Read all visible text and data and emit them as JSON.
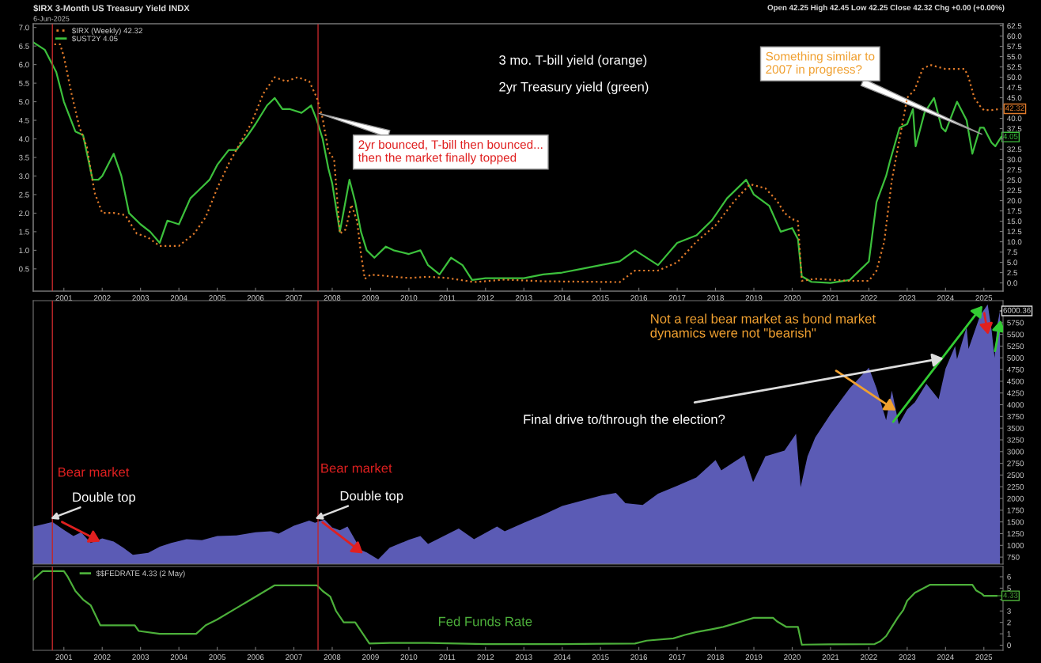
{
  "chart_data": [
    {
      "type": "line",
      "title": "$IRX 3-Month US Treasury Yield INDX",
      "subtitle": "6-Jun-2025",
      "legend": "top left",
      "xlim": [
        2000.2,
        2025.5
      ],
      "xticks": [
        2001,
        2002,
        2003,
        2004,
        2005,
        2006,
        2007,
        2008,
        2009,
        2010,
        2011,
        2012,
        2013,
        2014,
        2015,
        2016,
        2017,
        2018,
        2019,
        2020,
        2021,
        2022,
        2023,
        2024,
        2025
      ],
      "ylim": [
        -0.1,
        7.1
      ],
      "yticks": [
        0.5,
        {
          "value": 1,
          "label": "1.0"
        },
        1.5,
        {
          "value": 2,
          "label": "2.0"
        },
        2.5,
        {
          "value": 3,
          "label": "3.0"
        },
        3.5,
        {
          "value": 4,
          "label": "4.0"
        },
        4.5,
        {
          "value": 5,
          "label": "5.0"
        },
        5.5,
        {
          "value": 6,
          "label": "6.0"
        },
        6.5,
        {
          "value": 7,
          "label": "7.0"
        }
      ],
      "y2lim": [
        -2,
        63
      ],
      "y2ticks": [
        {
          "value": 0,
          "label": "0.0"
        },
        2.5,
        {
          "value": 5,
          "label": "5.0"
        },
        7.5,
        {
          "value": 10,
          "label": "10.0"
        },
        12.5,
        {
          "value": 15,
          "label": "15.0"
        },
        17.5,
        {
          "value": 20,
          "label": "20.0"
        },
        22.5,
        {
          "value": 25,
          "label": "25.0"
        },
        27.5,
        {
          "value": 30,
          "label": "30.0"
        },
        32.5,
        {
          "value": 35,
          "label": null
        },
        37.5,
        {
          "value": 40,
          "label": "40.0"
        },
        {
          "value": 45,
          "label": "45.0"
        },
        47.5,
        {
          "value": 50,
          "label": "50.0"
        },
        52.5,
        {
          "value": 55,
          "label": "55.0"
        },
        57.5,
        {
          "value": 60,
          "label": "60.0"
        },
        62.5
      ],
      "series": [
        {
          "name": "$IRX (Weekly) 42.32",
          "color": "#e07a2a",
          "axis": "y2",
          "line_style": "dotted",
          "x": [
            2000.75,
            2000.9,
            2001.0,
            2001.2,
            2001.4,
            2001.6,
            2001.8,
            2002.0,
            2002.3,
            2002.6,
            2002.9,
            2003.2,
            2003.5,
            2003.8,
            2004.0,
            2004.4,
            2004.7,
            2005.0,
            2005.3,
            2005.6,
            2005.9,
            2006.2,
            2006.5,
            2006.8,
            2007.1,
            2007.4,
            2007.6,
            2007.75,
            2007.9,
            2008.05,
            2008.2,
            2008.35,
            2008.5,
            2008.65,
            2008.75,
            2008.85,
            2009.0,
            2009.3,
            2009.6,
            2010.0,
            2010.5,
            2011.0,
            2011.5,
            2011.7,
            2012.5,
            2013.5,
            2014.5,
            2015.5,
            2015.9,
            2016.5,
            2017.0,
            2017.5,
            2018.0,
            2018.5,
            2018.9,
            2019.3,
            2019.6,
            2019.8,
            2020.0,
            2020.15,
            2020.25,
            2020.6,
            2021.5,
            2022.0,
            2022.2,
            2022.4,
            2022.6,
            2022.8,
            2023.0,
            2023.2,
            2023.4,
            2023.6,
            2024.0,
            2024.5,
            2024.6,
            2024.75,
            2024.9,
            2025.0,
            2025.2,
            2025.45
          ],
          "values": [
            58,
            58,
            55,
            46,
            38,
            33,
            22,
            17,
            17,
            16.5,
            12,
            11,
            9,
            9,
            9,
            12,
            16,
            23,
            29,
            34,
            39,
            46,
            50,
            49,
            50,
            49,
            45,
            40,
            32,
            30,
            12,
            13,
            19,
            15,
            7,
            1,
            2,
            1.8,
            1.5,
            1.2,
            1.5,
            1.2,
            0.5,
            0.2,
            0.8,
            0.4,
            0.3,
            0.2,
            3,
            3,
            5,
            10,
            14,
            20,
            24,
            23,
            20,
            17,
            15.5,
            15,
            0.5,
            1,
            0.5,
            0.5,
            3,
            10,
            25,
            35,
            45,
            47,
            52,
            53,
            52,
            52,
            50,
            45,
            43,
            42,
            42,
            42.32
          ],
          "value_labels": [
            null,
            null,
            null,
            null,
            null,
            null,
            null,
            null,
            null,
            null,
            null,
            null,
            null,
            null,
            null,
            null,
            null,
            null,
            null,
            null,
            null,
            null,
            null,
            null,
            null,
            null,
            null,
            null,
            null,
            null,
            null,
            null,
            null,
            null,
            null,
            null,
            null,
            null,
            null,
            null,
            null,
            null,
            null,
            null,
            null,
            null,
            null,
            null,
            null,
            null,
            null,
            null,
            null,
            null,
            null,
            null,
            null,
            null,
            null,
            null,
            null,
            null,
            null,
            null,
            null,
            null,
            null,
            null,
            null,
            null,
            null,
            null,
            null,
            null,
            null,
            null,
            null,
            null,
            null,
            "42.32"
          ]
        },
        {
          "name": "$UST2Y 4.05",
          "color": "#3cc03c",
          "line_style": "solid",
          "x": [
            2000.2,
            2000.5,
            2000.8,
            2001.0,
            2001.3,
            2001.5,
            2001.75,
            2001.9,
            2002.0,
            2002.3,
            2002.5,
            2002.7,
            2003.0,
            2003.25,
            2003.5,
            2003.7,
            2004.0,
            2004.3,
            2004.5,
            2004.8,
            2005.0,
            2005.3,
            2005.5,
            2005.8,
            2006.0,
            2006.3,
            2006.5,
            2006.7,
            2006.9,
            2007.2,
            2007.45,
            2007.6,
            2007.75,
            2007.9,
            2008.0,
            2008.2,
            2008.45,
            2008.6,
            2008.75,
            2008.9,
            2009.1,
            2009.4,
            2009.6,
            2010.0,
            2010.3,
            2010.5,
            2010.8,
            2011.1,
            2011.4,
            2011.65,
            2012.0,
            2012.5,
            2013.0,
            2013.5,
            2014.0,
            2014.5,
            2015.0,
            2015.5,
            2015.9,
            2016.5,
            2017.0,
            2017.5,
            2017.9,
            2018.3,
            2018.8,
            2019.0,
            2019.4,
            2019.7,
            2020.0,
            2020.15,
            2020.25,
            2020.5,
            2021.0,
            2021.5,
            2021.8,
            2022.0,
            2022.2,
            2022.45,
            2022.55,
            2022.8,
            2023.0,
            2023.15,
            2023.22,
            2023.45,
            2023.7,
            2023.9,
            2024.0,
            2024.3,
            2024.55,
            2024.7,
            2024.9,
            2025.0,
            2025.2,
            2025.3,
            2025.45
          ],
          "values": [
            6.6,
            6.4,
            5.8,
            5.0,
            4.2,
            4.1,
            2.9,
            2.9,
            3.0,
            3.6,
            3.0,
            2.0,
            1.7,
            1.5,
            1.2,
            1.8,
            1.7,
            2.4,
            2.6,
            2.9,
            3.3,
            3.7,
            3.7,
            4.1,
            4.4,
            4.9,
            5.1,
            4.8,
            4.8,
            4.7,
            4.9,
            4.5,
            4.0,
            3.2,
            2.8,
            1.5,
            2.9,
            2.3,
            1.5,
            1.0,
            0.8,
            1.1,
            1.0,
            0.9,
            1.0,
            0.6,
            0.35,
            0.8,
            0.6,
            0.2,
            0.25,
            0.25,
            0.25,
            0.35,
            0.4,
            0.5,
            0.6,
            0.7,
            1.0,
            0.6,
            1.2,
            1.4,
            1.8,
            2.4,
            2.9,
            2.5,
            2.2,
            1.5,
            1.6,
            1.3,
            0.3,
            0.15,
            0.12,
            0.2,
            0.5,
            0.7,
            2.3,
            3.0,
            3.4,
            4.3,
            4.4,
            4.8,
            3.8,
            4.7,
            5.1,
            4.3,
            4.2,
            5.0,
            4.5,
            3.6,
            4.3,
            4.3,
            3.9,
            3.8,
            4.05
          ]
        }
      ],
      "ref_lines": [
        {
          "axis": "x",
          "value": 2000.7,
          "color": "#c0282a"
        },
        {
          "axis": "x",
          "value": 2007.63,
          "color": "#c0282a"
        }
      ],
      "annotations": [
        "Open 42.25 High 42.45 Low 42.25 Close 42.32 Chg +0.00 (+0.00%)",
        "3 mo. T-bill yield (orange)",
        "2yr Treasury yield (green)",
        {
          "text": "2yr bounced, T-bill then bounced...\nthen the market finally topped",
          "x": 2007.6,
          "y": 4.7
        },
        {
          "text": "Something similar to\n2007 in progress?",
          "x": 2025.0,
          "y": 4.1
        },
        {
          "text": "4.05",
          "x": 2025.45,
          "y": 4.05
        }
      ]
    },
    {
      "type": "area",
      "tick_labels": "y",
      "xlim": [
        2000.2,
        2025.5
      ],
      "xticks": [
        2001,
        2002,
        2003,
        2004,
        2005,
        2006,
        2007,
        2008,
        2009,
        2010,
        2011,
        2012,
        2013,
        2014,
        2015,
        2016,
        2017,
        2018,
        2019,
        2020,
        2021,
        2022,
        2023,
        2024,
        2025
      ],
      "ylim": [
        600,
        6220
      ],
      "yticks": [
        750,
        1000,
        1250,
        1500,
        1750,
        2000,
        2250,
        2500,
        2750,
        3000,
        3250,
        3500,
        3750,
        4000,
        4250,
        4500,
        4750,
        5000,
        5250,
        5500,
        5750
      ],
      "series": [
        {
          "color": "#5b5bb5",
          "x": [
            2000.2,
            2000.45,
            2000.7,
            2001.0,
            2001.25,
            2001.45,
            2001.7,
            2002.0,
            2002.3,
            2002.55,
            2002.8,
            2003.2,
            2003.5,
            2003.8,
            2004.2,
            2004.6,
            2005.0,
            2005.5,
            2006.0,
            2006.4,
            2006.6,
            2007.0,
            2007.4,
            2007.55,
            2007.8,
            2008.0,
            2008.2,
            2008.4,
            2008.75,
            2008.9,
            2009.2,
            2009.5,
            2010.0,
            2010.3,
            2010.5,
            2011.3,
            2011.7,
            2012.3,
            2012.5,
            2013.0,
            2013.5,
            2014.0,
            2014.5,
            2015.0,
            2015.4,
            2015.65,
            2016.1,
            2016.5,
            2017.0,
            2017.5,
            2018.0,
            2018.15,
            2018.75,
            2018.98,
            2019.3,
            2019.8,
            2020.1,
            2020.22,
            2020.4,
            2020.6,
            2021.0,
            2021.5,
            2022.0,
            2022.2,
            2022.45,
            2022.6,
            2022.78,
            2023.0,
            2023.2,
            2023.5,
            2023.82,
            2024.0,
            2024.25,
            2024.3,
            2024.55,
            2024.6,
            2024.9,
            2025.1,
            2025.2,
            2025.28,
            2025.35,
            2025.42
          ],
          "values": [
            1400,
            1450,
            1500,
            1330,
            1200,
            1280,
            1050,
            1150,
            1080,
            950,
            800,
            840,
            970,
            1050,
            1130,
            1110,
            1200,
            1210,
            1280,
            1300,
            1250,
            1420,
            1530,
            1480,
            1550,
            1380,
            1320,
            1400,
            900,
            850,
            700,
            950,
            1120,
            1200,
            1030,
            1360,
            1130,
            1400,
            1300,
            1480,
            1650,
            1840,
            1950,
            2060,
            2120,
            1900,
            1860,
            2100,
            2270,
            2450,
            2820,
            2600,
            2920,
            2350,
            2900,
            3020,
            3380,
            2240,
            2900,
            3300,
            3800,
            4350,
            4790,
            4350,
            3670,
            4300,
            3580,
            3900,
            4050,
            4450,
            4120,
            4770,
            5250,
            4970,
            5660,
            5190,
            5900,
            6140,
            5600,
            5000,
            5700,
            6000.36
          ]
        }
      ],
      "ref_lines": [
        {
          "axis": "x",
          "value": 2000.7,
          "color": "#c0282a"
        },
        {
          "axis": "x",
          "value": 2007.63,
          "color": "#c0282a"
        }
      ],
      "annotations": [
        "Not a real bear market as bond market\ndynamics were not \"bearish\"",
        "Final drive to/through the election?",
        "Bear market",
        "Bear market",
        {
          "text": "Double top",
          "x": 2000.6,
          "y": 1550
        },
        {
          "text": "Double top",
          "x": 2007.5,
          "y": 1550
        },
        {
          "text": "6000.36",
          "x": 2025.42,
          "y": 6000.36
        }
      ]
    },
    {
      "type": "line",
      "legend": "top left",
      "xlim": [
        2000.2,
        2025.5
      ],
      "xticks": [
        2001,
        2002,
        2003,
        2004,
        2005,
        2006,
        2007,
        2008,
        2009,
        2010,
        2011,
        2012,
        2013,
        2014,
        2015,
        2016,
        2017,
        2018,
        2019,
        2020,
        2021,
        2022,
        2023,
        2024,
        2025
      ],
      "ylim": [
        -0.45,
        6.9
      ],
      "yticks": [
        0,
        1,
        2,
        3,
        {
          "value": 4,
          "label": null
        },
        5,
        6
      ],
      "series": [
        {
          "name": "$$FEDRATE 4.33 (2 May)",
          "color": "#4caf3a",
          "line_style": "solid",
          "x": [
            2000.2,
            2000.45,
            2001.0,
            2001.1,
            2001.3,
            2001.5,
            2001.7,
            2001.95,
            2002.85,
            2002.95,
            2003.5,
            2004.45,
            2004.7,
            2005.0,
            2005.5,
            2006.0,
            2006.5,
            2007.6,
            2007.75,
            2007.95,
            2008.1,
            2008.3,
            2008.6,
            2008.8,
            2008.97,
            2009.5,
            2010.5,
            2012.0,
            2014.0,
            2015.9,
            2016.2,
            2016.9,
            2017.2,
            2017.5,
            2017.9,
            2018.2,
            2018.5,
            2018.8,
            2019.0,
            2019.5,
            2019.6,
            2019.85,
            2020.15,
            2020.25,
            2021.0,
            2022.15,
            2022.3,
            2022.45,
            2022.6,
            2022.75,
            2022.9,
            2023.0,
            2023.2,
            2023.6,
            2024.7,
            2024.8,
            2024.95,
            2025.0,
            2025.33
          ],
          "values": [
            5.75,
            6.5,
            6.5,
            6.0,
            4.75,
            4.0,
            3.5,
            1.75,
            1.75,
            1.25,
            1.0,
            1.0,
            1.75,
            2.25,
            3.25,
            4.25,
            5.25,
            5.25,
            4.75,
            4.25,
            3.0,
            2.0,
            2.0,
            1.0,
            0.15,
            0.2,
            0.2,
            0.1,
            0.1,
            0.15,
            0.4,
            0.6,
            0.9,
            1.15,
            1.4,
            1.6,
            1.9,
            2.2,
            2.4,
            2.4,
            2.1,
            1.6,
            1.6,
            0.05,
            0.08,
            0.1,
            0.35,
            0.8,
            1.6,
            2.4,
            3.1,
            3.9,
            4.6,
            5.3,
            5.3,
            4.8,
            4.5,
            4.33,
            4.33
          ]
        }
      ],
      "ref_lines": [
        {
          "axis": "x",
          "value": 2000.7,
          "color": "#c0282a"
        },
        {
          "axis": "x",
          "value": 2007.63,
          "color": "#c0282a"
        }
      ],
      "annotations": [
        "Fed Funds Rate",
        {
          "text": "4.33",
          "x": 2025.33,
          "y": 4.33
        }
      ]
    }
  ]
}
